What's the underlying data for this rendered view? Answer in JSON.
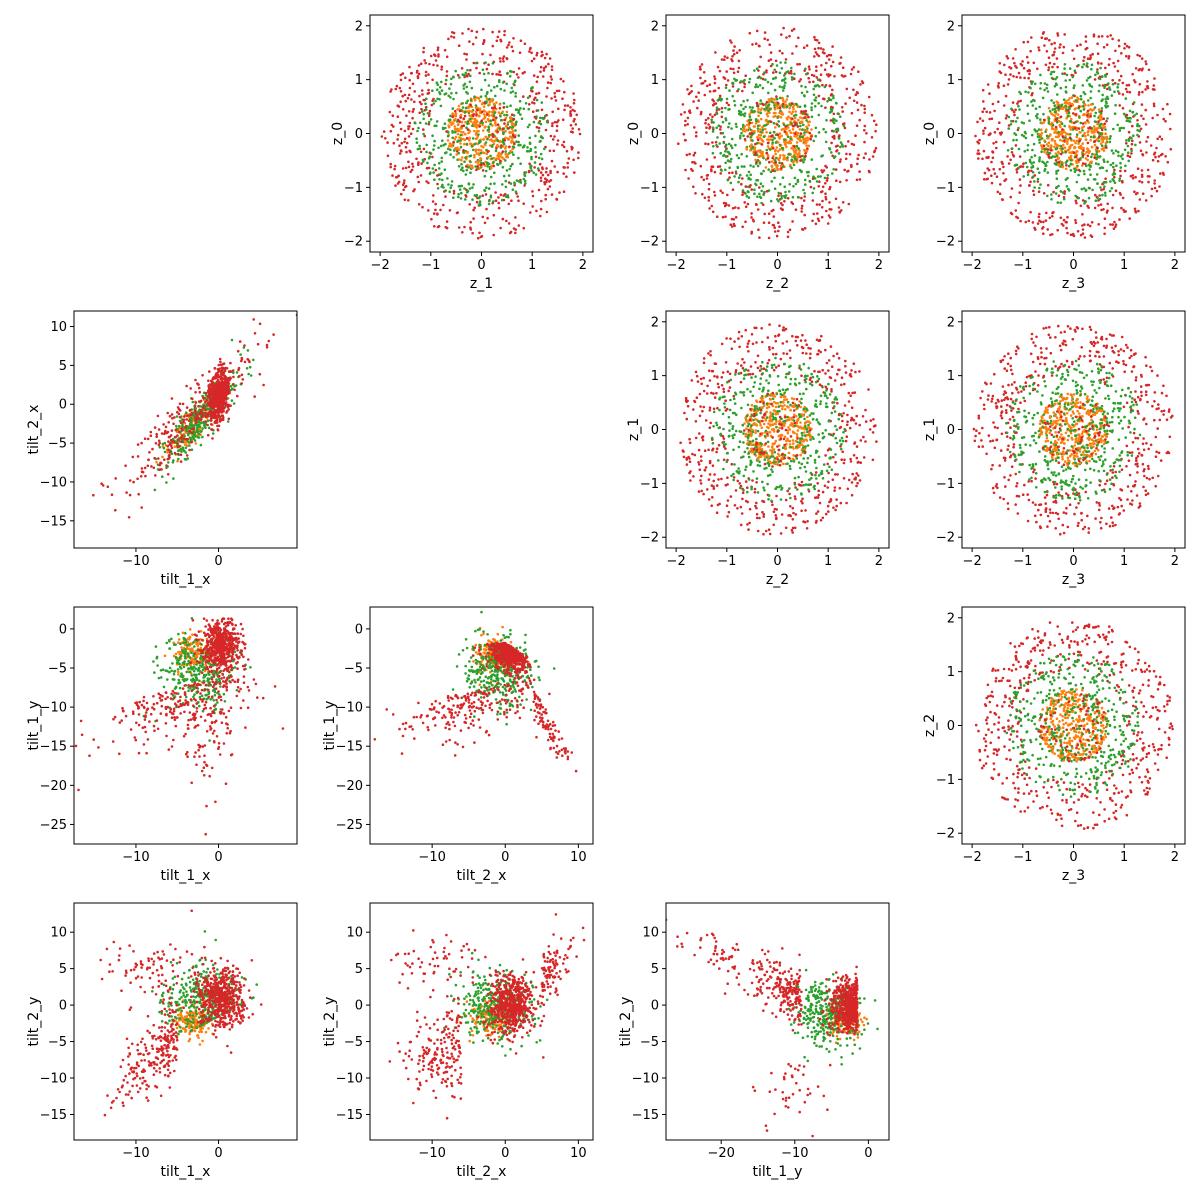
{
  "chart_data": {
    "type": "scatter",
    "grid": false,
    "legend": "none",
    "colors": {
      "orange": "#ff7f0e",
      "green": "#2ca02c",
      "red": "#d62728"
    },
    "panels": [
      {
        "id": "p01",
        "row": 0,
        "col": 1,
        "pattern": "disk",
        "xlabel": "z_1",
        "ylabel": "z_0",
        "xlim": [
          -2.2,
          2.2
        ],
        "ylim": [
          -2.2,
          2.2
        ],
        "xticks": [
          -2,
          -1,
          0,
          1,
          2
        ],
        "yticks": [
          -2,
          -1,
          0,
          1,
          2
        ]
      },
      {
        "id": "p02",
        "row": 0,
        "col": 2,
        "pattern": "disk",
        "xlabel": "z_2",
        "ylabel": "z_0",
        "xlim": [
          -2.2,
          2.2
        ],
        "ylim": [
          -2.2,
          2.2
        ],
        "xticks": [
          -2,
          -1,
          0,
          1,
          2
        ],
        "yticks": [
          -2,
          -1,
          0,
          1,
          2
        ]
      },
      {
        "id": "p03",
        "row": 0,
        "col": 3,
        "pattern": "disk",
        "xlabel": "z_3",
        "ylabel": "z_0",
        "xlim": [
          -2.2,
          2.2
        ],
        "ylim": [
          -2.2,
          2.2
        ],
        "xticks": [
          -2,
          -1,
          0,
          1,
          2
        ],
        "yticks": [
          -2,
          -1,
          0,
          1,
          2
        ]
      },
      {
        "id": "p10",
        "row": 1,
        "col": 0,
        "pattern": "tilt1x-tilt2x",
        "xlabel": "tilt_1_x",
        "ylabel": "tilt_2_x",
        "xlim": [
          -17.5,
          9.5
        ],
        "ylim": [
          -18.5,
          12
        ],
        "xticks": [
          -10,
          0
        ],
        "yticks": [
          -15,
          -10,
          -5,
          0,
          5,
          10
        ]
      },
      {
        "id": "p12",
        "row": 1,
        "col": 2,
        "pattern": "disk",
        "xlabel": "z_2",
        "ylabel": "z_1",
        "xlim": [
          -2.2,
          2.2
        ],
        "ylim": [
          -2.2,
          2.2
        ],
        "xticks": [
          -2,
          -1,
          0,
          1,
          2
        ],
        "yticks": [
          -2,
          -1,
          0,
          1,
          2
        ]
      },
      {
        "id": "p13",
        "row": 1,
        "col": 3,
        "pattern": "disk",
        "xlabel": "z_3",
        "ylabel": "z_1",
        "xlim": [
          -2.2,
          2.2
        ],
        "ylim": [
          -2.2,
          2.2
        ],
        "xticks": [
          -2,
          -1,
          0,
          1,
          2
        ],
        "yticks": [
          -2,
          -1,
          0,
          1,
          2
        ]
      },
      {
        "id": "p20",
        "row": 2,
        "col": 0,
        "pattern": "tilt1x-tilt1y",
        "xlabel": "tilt_1_x",
        "ylabel": "tilt_1_y",
        "xlim": [
          -17.5,
          9.5
        ],
        "ylim": [
          -27.5,
          2.8
        ],
        "xticks": [
          -10,
          0
        ],
        "yticks": [
          -25,
          -20,
          -15,
          -10,
          -5,
          0
        ]
      },
      {
        "id": "p21",
        "row": 2,
        "col": 1,
        "pattern": "tilt2x-tilt1y",
        "xlabel": "tilt_2_x",
        "ylabel": "tilt_1_y",
        "xlim": [
          -18.5,
          12
        ],
        "ylim": [
          -27.5,
          2.8
        ],
        "xticks": [
          -10,
          0,
          10
        ],
        "yticks": [
          -25,
          -20,
          -15,
          -10,
          -5,
          0
        ]
      },
      {
        "id": "p23",
        "row": 2,
        "col": 3,
        "pattern": "disk",
        "xlabel": "z_3",
        "ylabel": "z_2",
        "xlim": [
          -2.2,
          2.2
        ],
        "ylim": [
          -2.2,
          2.2
        ],
        "xticks": [
          -2,
          -1,
          0,
          1,
          2
        ],
        "yticks": [
          -2,
          -1,
          0,
          1,
          2
        ]
      },
      {
        "id": "p30",
        "row": 3,
        "col": 0,
        "pattern": "tilt1x-tilt2y",
        "xlabel": "tilt_1_x",
        "ylabel": "tilt_2_y",
        "xlim": [
          -17.5,
          9.5
        ],
        "ylim": [
          -18.5,
          14
        ],
        "xticks": [
          -10,
          0
        ],
        "yticks": [
          -15,
          -10,
          -5,
          0,
          5,
          10
        ]
      },
      {
        "id": "p31",
        "row": 3,
        "col": 1,
        "pattern": "tilt2x-tilt2y",
        "xlabel": "tilt_2_x",
        "ylabel": "tilt_2_y",
        "xlim": [
          -18.5,
          12
        ],
        "ylim": [
          -18.5,
          14
        ],
        "xticks": [
          -10,
          0,
          10
        ],
        "yticks": [
          -15,
          -10,
          -5,
          0,
          5,
          10
        ]
      },
      {
        "id": "p32",
        "row": 3,
        "col": 2,
        "pattern": "tilt1y-tilt2y",
        "xlabel": "tilt_1_y",
        "ylabel": "tilt_2_y",
        "xlim": [
          -27.5,
          2.8
        ],
        "ylim": [
          -18.5,
          14
        ],
        "xticks": [
          -20,
          -10,
          0
        ],
        "yticks": [
          -15,
          -10,
          -5,
          0,
          5,
          10
        ]
      }
    ]
  }
}
